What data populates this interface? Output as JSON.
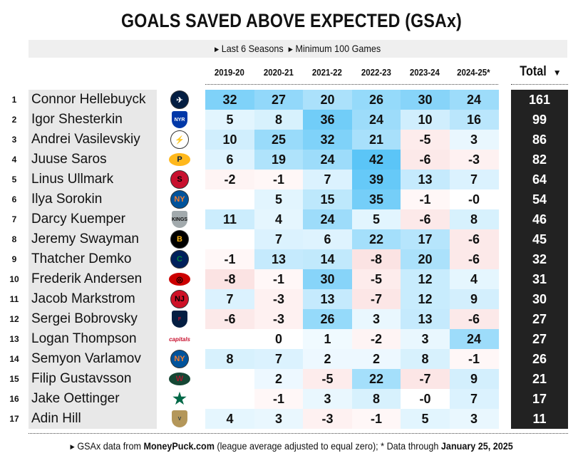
{
  "title": "GOALS SAVED ABOVE EXPECTED (GSAx)",
  "subtitle": {
    "items": [
      "Last 6 Seasons",
      "Minimum 100 Games"
    ]
  },
  "footer": {
    "prefix": "GSAx data from ",
    "source": "MoneyPuck.com",
    "middle": " (league average adjusted to equal zero); * Data through ",
    "date": "January 25, 2025"
  },
  "colors": {
    "positive": "#5bc5f7",
    "negative": "#fbe3e3",
    "total_bg": "#222222"
  },
  "chart_data": {
    "type": "table",
    "title": "GOALS SAVED ABOVE EXPECTED (GSAx)",
    "columns": [
      "2019-20",
      "2020-21",
      "2021-22",
      "2022-23",
      "2023-24",
      "2024-25*"
    ],
    "total_label": "Total",
    "sort": "Total descending",
    "rows": [
      {
        "rank": "1",
        "name": "Connor Hellebuyck",
        "team": "Winnipeg Jets",
        "values": [
          32,
          27,
          20,
          26,
          30,
          24
        ],
        "total": 161
      },
      {
        "rank": "2",
        "name": "Igor Shesterkin",
        "team": "New York Rangers",
        "values": [
          5,
          8,
          36,
          24,
          10,
          16
        ],
        "total": 99
      },
      {
        "rank": "3",
        "name": "Andrei Vasilevskiy",
        "team": "Tampa Bay Lightning",
        "values": [
          10,
          25,
          32,
          21,
          -5,
          3
        ],
        "total": 86
      },
      {
        "rank": "4",
        "name": "Juuse Saros",
        "team": "Nashville Predators",
        "values": [
          6,
          19,
          24,
          42,
          -6,
          -3
        ],
        "total": 82
      },
      {
        "rank": "5",
        "name": "Linus Ullmark",
        "team": "Ottawa Senators",
        "values": [
          -2,
          -1,
          7,
          39,
          13,
          7
        ],
        "total": 64
      },
      {
        "rank": "6",
        "name": "Ilya Sorokin",
        "team": "New York Islanders",
        "values": [
          null,
          5,
          15,
          35,
          -1,
          "-0"
        ],
        "total": 54
      },
      {
        "rank": "7",
        "name": "Darcy Kuemper",
        "team": "Los Angeles Kings",
        "values": [
          11,
          4,
          24,
          5,
          -6,
          8
        ],
        "total": 46
      },
      {
        "rank": "8",
        "name": "Jeremy Swayman",
        "team": "Boston Bruins",
        "values": [
          null,
          7,
          6,
          22,
          17,
          -6
        ],
        "total": 45
      },
      {
        "rank": "9",
        "name": "Thatcher Demko",
        "team": "Vancouver Canucks",
        "values": [
          -1,
          13,
          14,
          -8,
          20,
          -6
        ],
        "total": 32
      },
      {
        "rank": "10",
        "name": "Frederik Andersen",
        "team": "Carolina Hurricanes",
        "values": [
          -8,
          -1,
          30,
          -5,
          12,
          4
        ],
        "total": 31
      },
      {
        "rank": "11",
        "name": "Jacob Markstrom",
        "team": "New Jersey Devils",
        "values": [
          7,
          -3,
          13,
          -7,
          12,
          9
        ],
        "total": 30
      },
      {
        "rank": "12",
        "name": "Sergei Bobrovsky",
        "team": "Florida Panthers",
        "values": [
          -6,
          -3,
          26,
          3,
          13,
          -6
        ],
        "total": 27
      },
      {
        "rank": "13",
        "name": "Logan Thompson",
        "team": "Washington Capitals",
        "values": [
          null,
          0,
          1,
          -2,
          3,
          24
        ],
        "total": 27
      },
      {
        "rank": "14",
        "name": "Semyon Varlamov",
        "team": "New York Islanders",
        "values": [
          8,
          7,
          2,
          2,
          8,
          -1
        ],
        "total": 26
      },
      {
        "rank": "15",
        "name": "Filip Gustavsson",
        "team": "Minnesota Wild",
        "values": [
          null,
          2,
          -5,
          22,
          -7,
          9
        ],
        "total": 21
      },
      {
        "rank": "16",
        "name": "Jake Oettinger",
        "team": "Dallas Stars",
        "values": [
          null,
          -1,
          3,
          8,
          "-0",
          7
        ],
        "total": 17
      },
      {
        "rank": "17",
        "name": "Adin Hill",
        "team": "Vegas Golden Knights",
        "values": [
          4,
          3,
          -3,
          -1,
          5,
          3
        ],
        "total": 11
      }
    ]
  }
}
